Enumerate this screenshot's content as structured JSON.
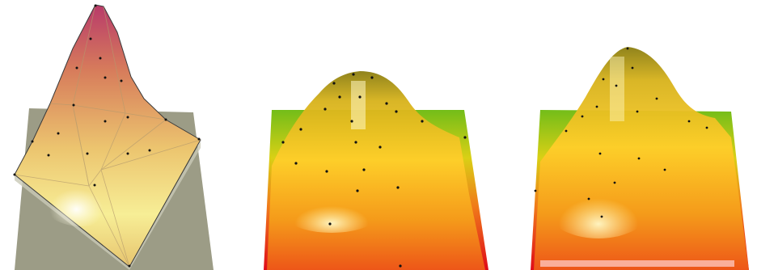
{
  "figure": {
    "panels": [
      {
        "id": "panel-1",
        "kind": "triangulated-surface-over-plane",
        "plane_color": "#9c9c86",
        "surface_colors": [
          "#f3ec8d",
          "#e7b05a",
          "#d98b5d",
          "#c9466a"
        ]
      },
      {
        "id": "panel-2",
        "kind": "smoothed-surface-gradient-base",
        "base_colors": [
          "#79c01a",
          "#f2ce13",
          "#ee4f1b",
          "#df0b19"
        ],
        "surface_colors": [
          "#fff7b0",
          "#ffcf24",
          "#f08a14",
          "#a66b08"
        ]
      },
      {
        "id": "panel-3",
        "kind": "smoothed-surface-gradient-base",
        "base_colors": [
          "#79c01a",
          "#f2ce13",
          "#ee4f1b",
          "#df0b19"
        ],
        "surface_colors": [
          "#fff6a8",
          "#ffd12a",
          "#f38c15",
          "#a86d09"
        ]
      }
    ]
  }
}
